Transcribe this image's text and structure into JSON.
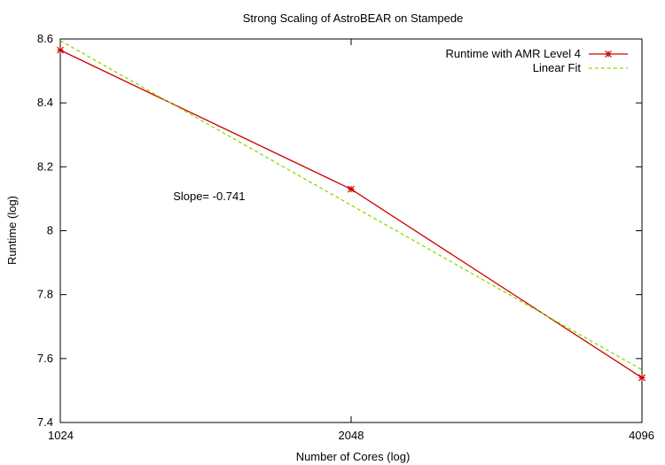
{
  "chart_data": {
    "type": "line",
    "title": "Strong Scaling of AstroBEAR on Stampede",
    "xlabel": "Number of Cores (log)",
    "ylabel": "Runtime (log)",
    "x_scale": "log2",
    "xlim": [
      1024,
      4096
    ],
    "ylim": [
      7.4,
      8.6
    ],
    "x_ticks": [
      1024,
      2048,
      4096
    ],
    "x_tick_labels": [
      "1024",
      "2048",
      "4096"
    ],
    "y_ticks": [
      7.4,
      7.6,
      7.8,
      8.0,
      8.2,
      8.4,
      8.6
    ],
    "y_tick_labels": [
      "7.4",
      "7.6",
      "7.8",
      "8",
      "8.2",
      "8.4",
      "8.6"
    ],
    "legend_position": "top-right",
    "series": [
      {
        "name": "Runtime with AMR Level 4",
        "color": "#cc0000",
        "marker": "asterisk",
        "x": [
          1024,
          2048,
          4096
        ],
        "y": [
          8.565,
          8.13,
          7.54
        ]
      },
      {
        "name": "Linear Fit",
        "color": "#88dd00",
        "dash": true,
        "x": [
          1024,
          4096
        ],
        "y": [
          8.595,
          7.565
        ]
      }
    ],
    "annotation": {
      "text": "Slope= -0.741",
      "x": 1460,
      "y": 8.095
    }
  }
}
